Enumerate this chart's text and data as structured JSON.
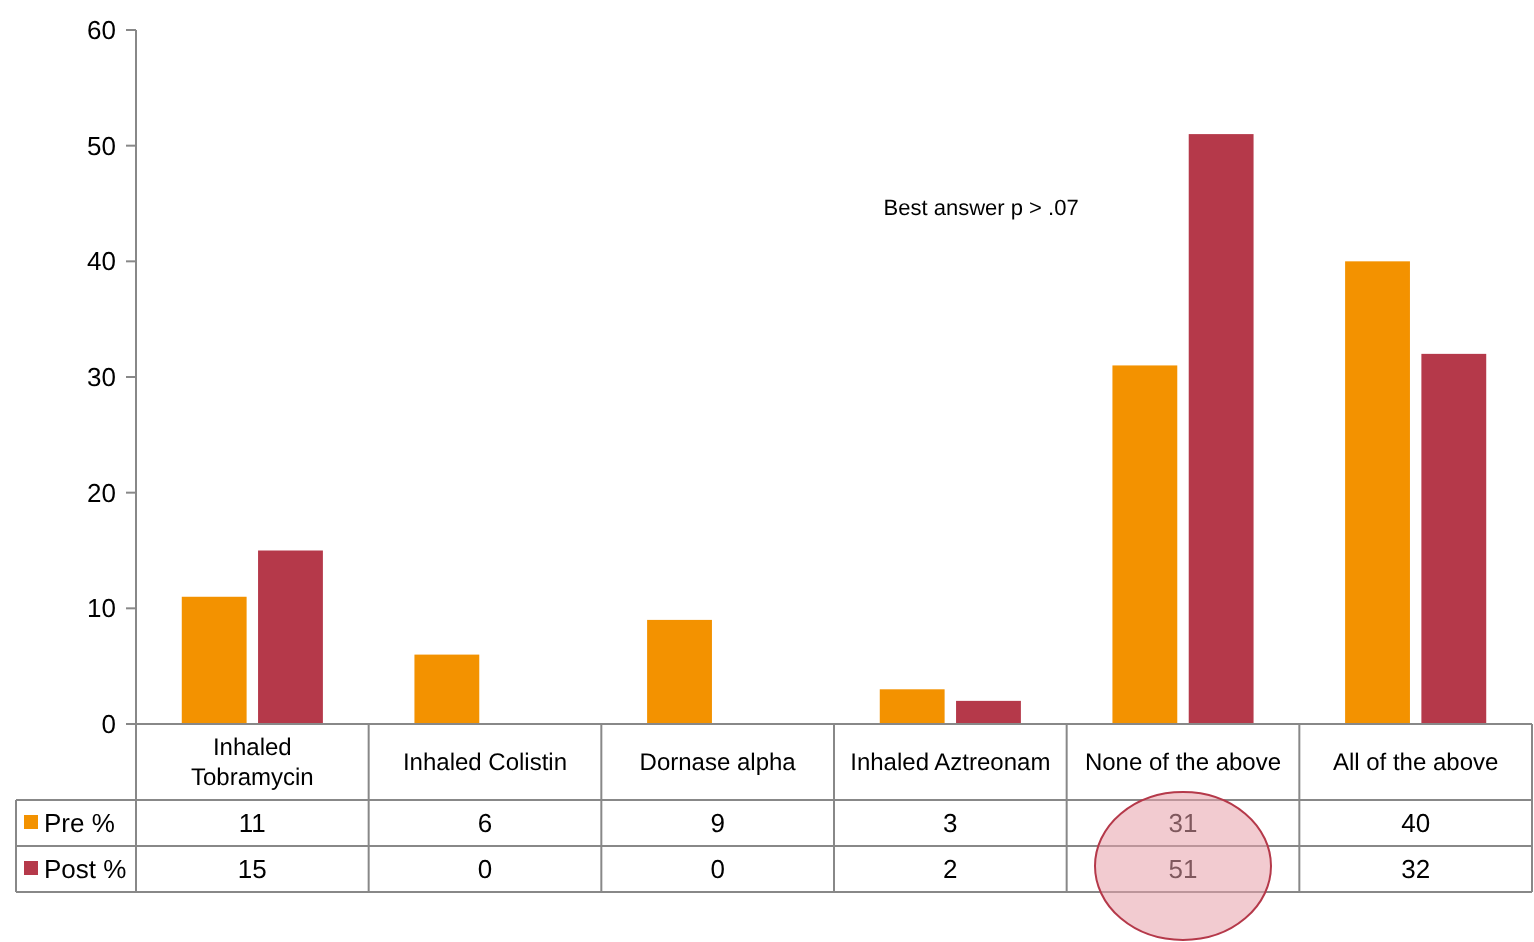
{
  "chart_data": {
    "type": "bar",
    "categories": [
      "Inhaled Tobramycin",
      "Inhaled Colistin",
      "Dornase alpha",
      "Inhaled Aztreonam",
      "None of the above",
      "All of the above"
    ],
    "series": [
      {
        "name": "Pre %",
        "color": "#f39200",
        "values": [
          11,
          6,
          9,
          3,
          31,
          40
        ]
      },
      {
        "name": "Post %",
        "color": "#b5394a",
        "values": [
          15,
          0,
          0,
          2,
          51,
          32
        ]
      }
    ],
    "ylim": [
      0,
      60
    ],
    "yticks": [
      0,
      10,
      20,
      30,
      40,
      50,
      60
    ],
    "grid": false,
    "legend": "bottom left",
    "data_labels": true,
    "annotations": [
      "Best answer p > .07"
    ]
  }
}
